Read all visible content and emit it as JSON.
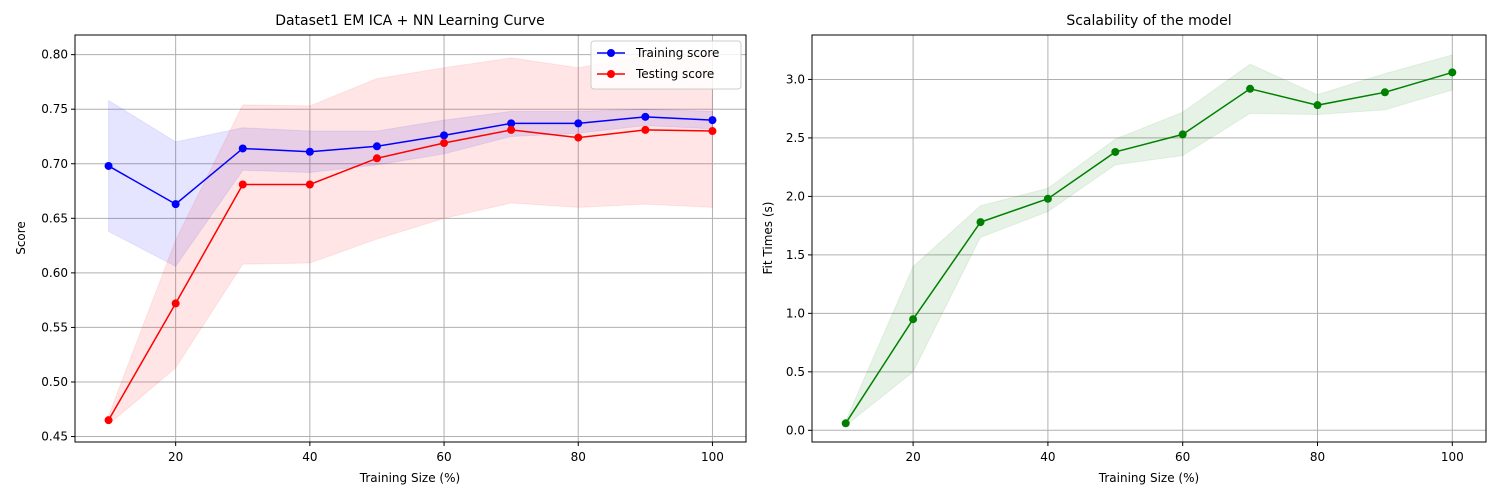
{
  "chart_data": [
    {
      "type": "line",
      "title": "Dataset1 EM ICA + NN Learning Curve",
      "xlabel": "Training Size (%)",
      "ylabel": "Score",
      "xlim": [
        5,
        105
      ],
      "ylim": [
        0.445,
        0.818
      ],
      "xticks": [
        20,
        40,
        60,
        80,
        100
      ],
      "yticks": [
        0.45,
        0.5,
        0.55,
        0.6,
        0.65,
        0.7,
        0.75,
        0.8
      ],
      "ytick_labels": [
        "0.45",
        "0.50",
        "0.55",
        "0.60",
        "0.65",
        "0.70",
        "0.75",
        "0.80"
      ],
      "grid": true,
      "legend": "upper-right",
      "x": [
        10,
        20,
        30,
        40,
        50,
        60,
        70,
        80,
        90,
        100
      ],
      "series": [
        {
          "name": "Training score",
          "color": "#0000ff",
          "values": [
            0.698,
            0.663,
            0.714,
            0.711,
            0.716,
            0.726,
            0.737,
            0.737,
            0.743,
            0.74
          ],
          "lower": [
            0.638,
            0.606,
            0.694,
            0.692,
            0.699,
            0.709,
            0.725,
            0.728,
            0.735,
            0.732
          ],
          "upper": [
            0.758,
            0.72,
            0.733,
            0.73,
            0.73,
            0.74,
            0.748,
            0.748,
            0.75,
            0.748
          ]
        },
        {
          "name": "Testing score",
          "color": "#ff0000",
          "values": [
            0.465,
            0.572,
            0.681,
            0.681,
            0.705,
            0.719,
            0.731,
            0.724,
            0.731,
            0.73
          ],
          "lower": [
            0.461,
            0.513,
            0.608,
            0.609,
            0.631,
            0.65,
            0.664,
            0.66,
            0.663,
            0.66
          ],
          "upper": [
            0.469,
            0.63,
            0.754,
            0.753,
            0.778,
            0.788,
            0.797,
            0.788,
            0.799,
            0.799
          ]
        }
      ]
    },
    {
      "type": "line",
      "title": "Scalability of the model",
      "xlabel": "Training Size (%)",
      "ylabel": "Fit Times (s)",
      "xlim": [
        5,
        105
      ],
      "ylim": [
        -0.1,
        3.38
      ],
      "xticks": [
        20,
        40,
        60,
        80,
        100
      ],
      "yticks": [
        0.0,
        0.5,
        1.0,
        1.5,
        2.0,
        2.5,
        3.0
      ],
      "ytick_labels": [
        "0.0",
        "0.5",
        "1.0",
        "1.5",
        "2.0",
        "2.5",
        "3.0"
      ],
      "grid": true,
      "x": [
        10,
        20,
        30,
        40,
        50,
        60,
        70,
        80,
        90,
        100
      ],
      "series": [
        {
          "name": "",
          "color": "#008000",
          "values": [
            0.06,
            0.95,
            1.78,
            1.98,
            2.38,
            2.53,
            2.92,
            2.78,
            2.89,
            3.06
          ],
          "lower": [
            0.04,
            0.5,
            1.65,
            1.87,
            2.27,
            2.35,
            2.71,
            2.7,
            2.74,
            2.91
          ],
          "upper": [
            0.08,
            1.4,
            1.92,
            2.07,
            2.49,
            2.72,
            3.13,
            2.87,
            3.05,
            3.21
          ]
        }
      ]
    }
  ]
}
